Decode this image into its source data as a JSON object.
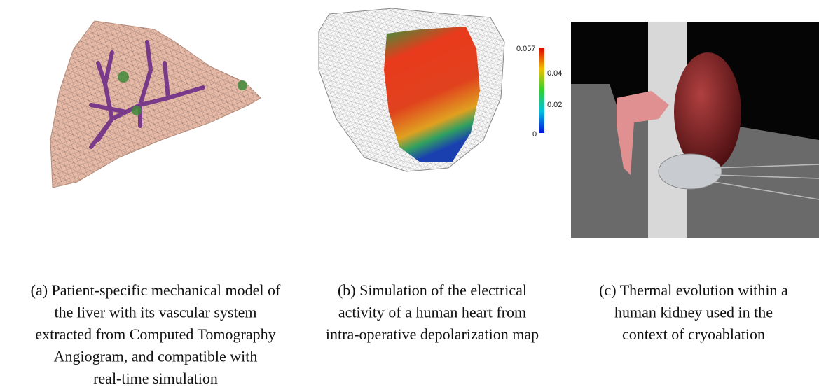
{
  "figure": {
    "colorbar": {
      "labels": [
        "0.057",
        "0.04",
        "0.02",
        "0"
      ]
    },
    "panels": [
      {
        "caption_lines": [
          "(a) Patient-specific mechanical model of",
          "the liver with its vascular system",
          "extracted from Computed Tomography",
          "Angiogram, and compatible with",
          "real-time simulation"
        ]
      },
      {
        "caption_lines": [
          "(b) Simulation of the electrical",
          "activity of a human heart from",
          "intra-operative depolarization map"
        ]
      },
      {
        "caption_lines": [
          "(c) Thermal evolution within a",
          "human kidney used in the",
          "context of cryoablation"
        ]
      }
    ]
  }
}
